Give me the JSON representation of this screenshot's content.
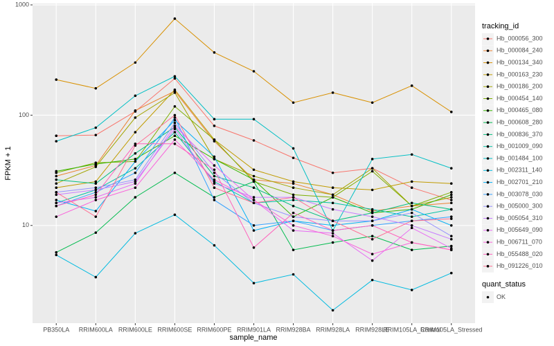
{
  "chart_data": {
    "type": "line",
    "x_label": "sample_name",
    "y_label": "FPKM + 1",
    "log_y": true,
    "grid": true,
    "categories": [
      "PB350LA",
      "RRIM600LA",
      "RRIM600LE",
      "RRIM600SE",
      "RRIM600PE",
      "RRIM901LA",
      "RRIM928BA",
      "RRIM928LA",
      "RRIM928LE",
      "RRIM105LA_Control",
      "RRIM105LA_Stressed"
    ],
    "ylim": [
      1.3,
      1030
    ],
    "yticks": [
      10,
      100,
      1000
    ],
    "legend_title": "tracking_id",
    "point_legend_title": "quant_status",
    "point_legend_label": "OK",
    "point_color": "#000000",
    "series": [
      {
        "name": "Hb_000056_300",
        "color": "#F8766D",
        "values": [
          65,
          66,
          108,
          215,
          80,
          59,
          41,
          30,
          33,
          22,
          17
        ]
      },
      {
        "name": "Hb_000084_240",
        "color": "#EA8331",
        "values": [
          28,
          35,
          110,
          165,
          58,
          26,
          24,
          19,
          13.5,
          15,
          16
        ]
      },
      {
        "name": "Hb_000134_340",
        "color": "#D89000",
        "values": [
          210,
          175,
          300,
          750,
          370,
          250,
          130,
          160,
          130,
          185,
          107
        ]
      },
      {
        "name": "Hb_000163_230",
        "color": "#C09B00",
        "values": [
          22,
          25,
          70,
          170,
          60,
          32,
          25,
          22,
          21,
          25,
          24
        ]
      },
      {
        "name": "Hb_000186_200",
        "color": "#A3A500",
        "values": [
          24,
          34,
          95,
          160,
          40,
          28,
          22,
          19,
          33,
          15,
          18
        ]
      },
      {
        "name": "Hb_000454_140",
        "color": "#7CAE00",
        "values": [
          30,
          37,
          38,
          120,
          60,
          25,
          19,
          18,
          31,
          15,
          20
        ]
      },
      {
        "name": "Hb_000465_080",
        "color": "#39B600",
        "values": [
          31,
          36,
          40,
          65,
          40,
          26,
          12,
          18,
          13,
          14,
          19
        ]
      },
      {
        "name": "Hb_000608_280",
        "color": "#00BB4E",
        "values": [
          5.7,
          8.6,
          18,
          30,
          18,
          25,
          6,
          7,
          8,
          6,
          6.5
        ]
      },
      {
        "name": "Hb_000836_370",
        "color": "#00BF7D",
        "values": [
          26,
          24,
          45,
          78,
          28,
          22,
          15,
          11,
          13,
          16,
          14
        ]
      },
      {
        "name": "Hb_001009_090",
        "color": "#00C1A3",
        "values": [
          16,
          21,
          33,
          70,
          25,
          16,
          17,
          16,
          14,
          12,
          14
        ]
      },
      {
        "name": "Hb_001484_100",
        "color": "#00BFC4",
        "values": [
          58,
          77,
          150,
          225,
          92,
          92,
          50,
          9,
          40,
          44,
          33
        ]
      },
      {
        "name": "Hb_002311_140",
        "color": "#00BAE0",
        "values": [
          5.4,
          3.4,
          8.5,
          12.5,
          6.6,
          3.0,
          3.6,
          1.7,
          3.2,
          2.6,
          3.7
        ]
      },
      {
        "name": "Hb_002701_210",
        "color": "#00B0F6",
        "values": [
          17,
          13.5,
          38,
          90,
          42,
          9,
          11,
          10,
          11,
          14,
          10
        ]
      },
      {
        "name": "Hb_003078_030",
        "color": "#35A2FF",
        "values": [
          15,
          20,
          30,
          95,
          17,
          10,
          11,
          9,
          10,
          11,
          12
        ]
      },
      {
        "name": "Hb_005000_300",
        "color": "#9590FF",
        "values": [
          20,
          22,
          26,
          85,
          30,
          16,
          12,
          11,
          11,
          13,
          8
        ]
      },
      {
        "name": "Hb_005054_310",
        "color": "#C77CFF",
        "values": [
          19,
          21,
          25,
          75,
          24,
          18,
          18,
          14,
          12,
          10,
          7.5
        ]
      },
      {
        "name": "Hb_005649_090",
        "color": "#E76BF3",
        "values": [
          16,
          18,
          24,
          80,
          35,
          17,
          9,
          8.5,
          4.8,
          9.5,
          6.2
        ]
      },
      {
        "name": "Hb_006711_070",
        "color": "#FA62DB",
        "values": [
          12,
          17,
          22,
          60,
          26,
          17,
          10,
          8,
          5.5,
          7,
          6
        ]
      },
      {
        "name": "Hb_055488_020",
        "color": "#FF62BC",
        "values": [
          15,
          19,
          55,
          55,
          32,
          6.3,
          13,
          9,
          10,
          7,
          6
        ]
      },
      {
        "name": "Hb_091226_010",
        "color": "#FF6C91",
        "values": [
          20,
          12,
          53,
          100,
          22,
          16,
          18,
          11,
          7.5,
          11,
          11.5
        ]
      }
    ]
  }
}
